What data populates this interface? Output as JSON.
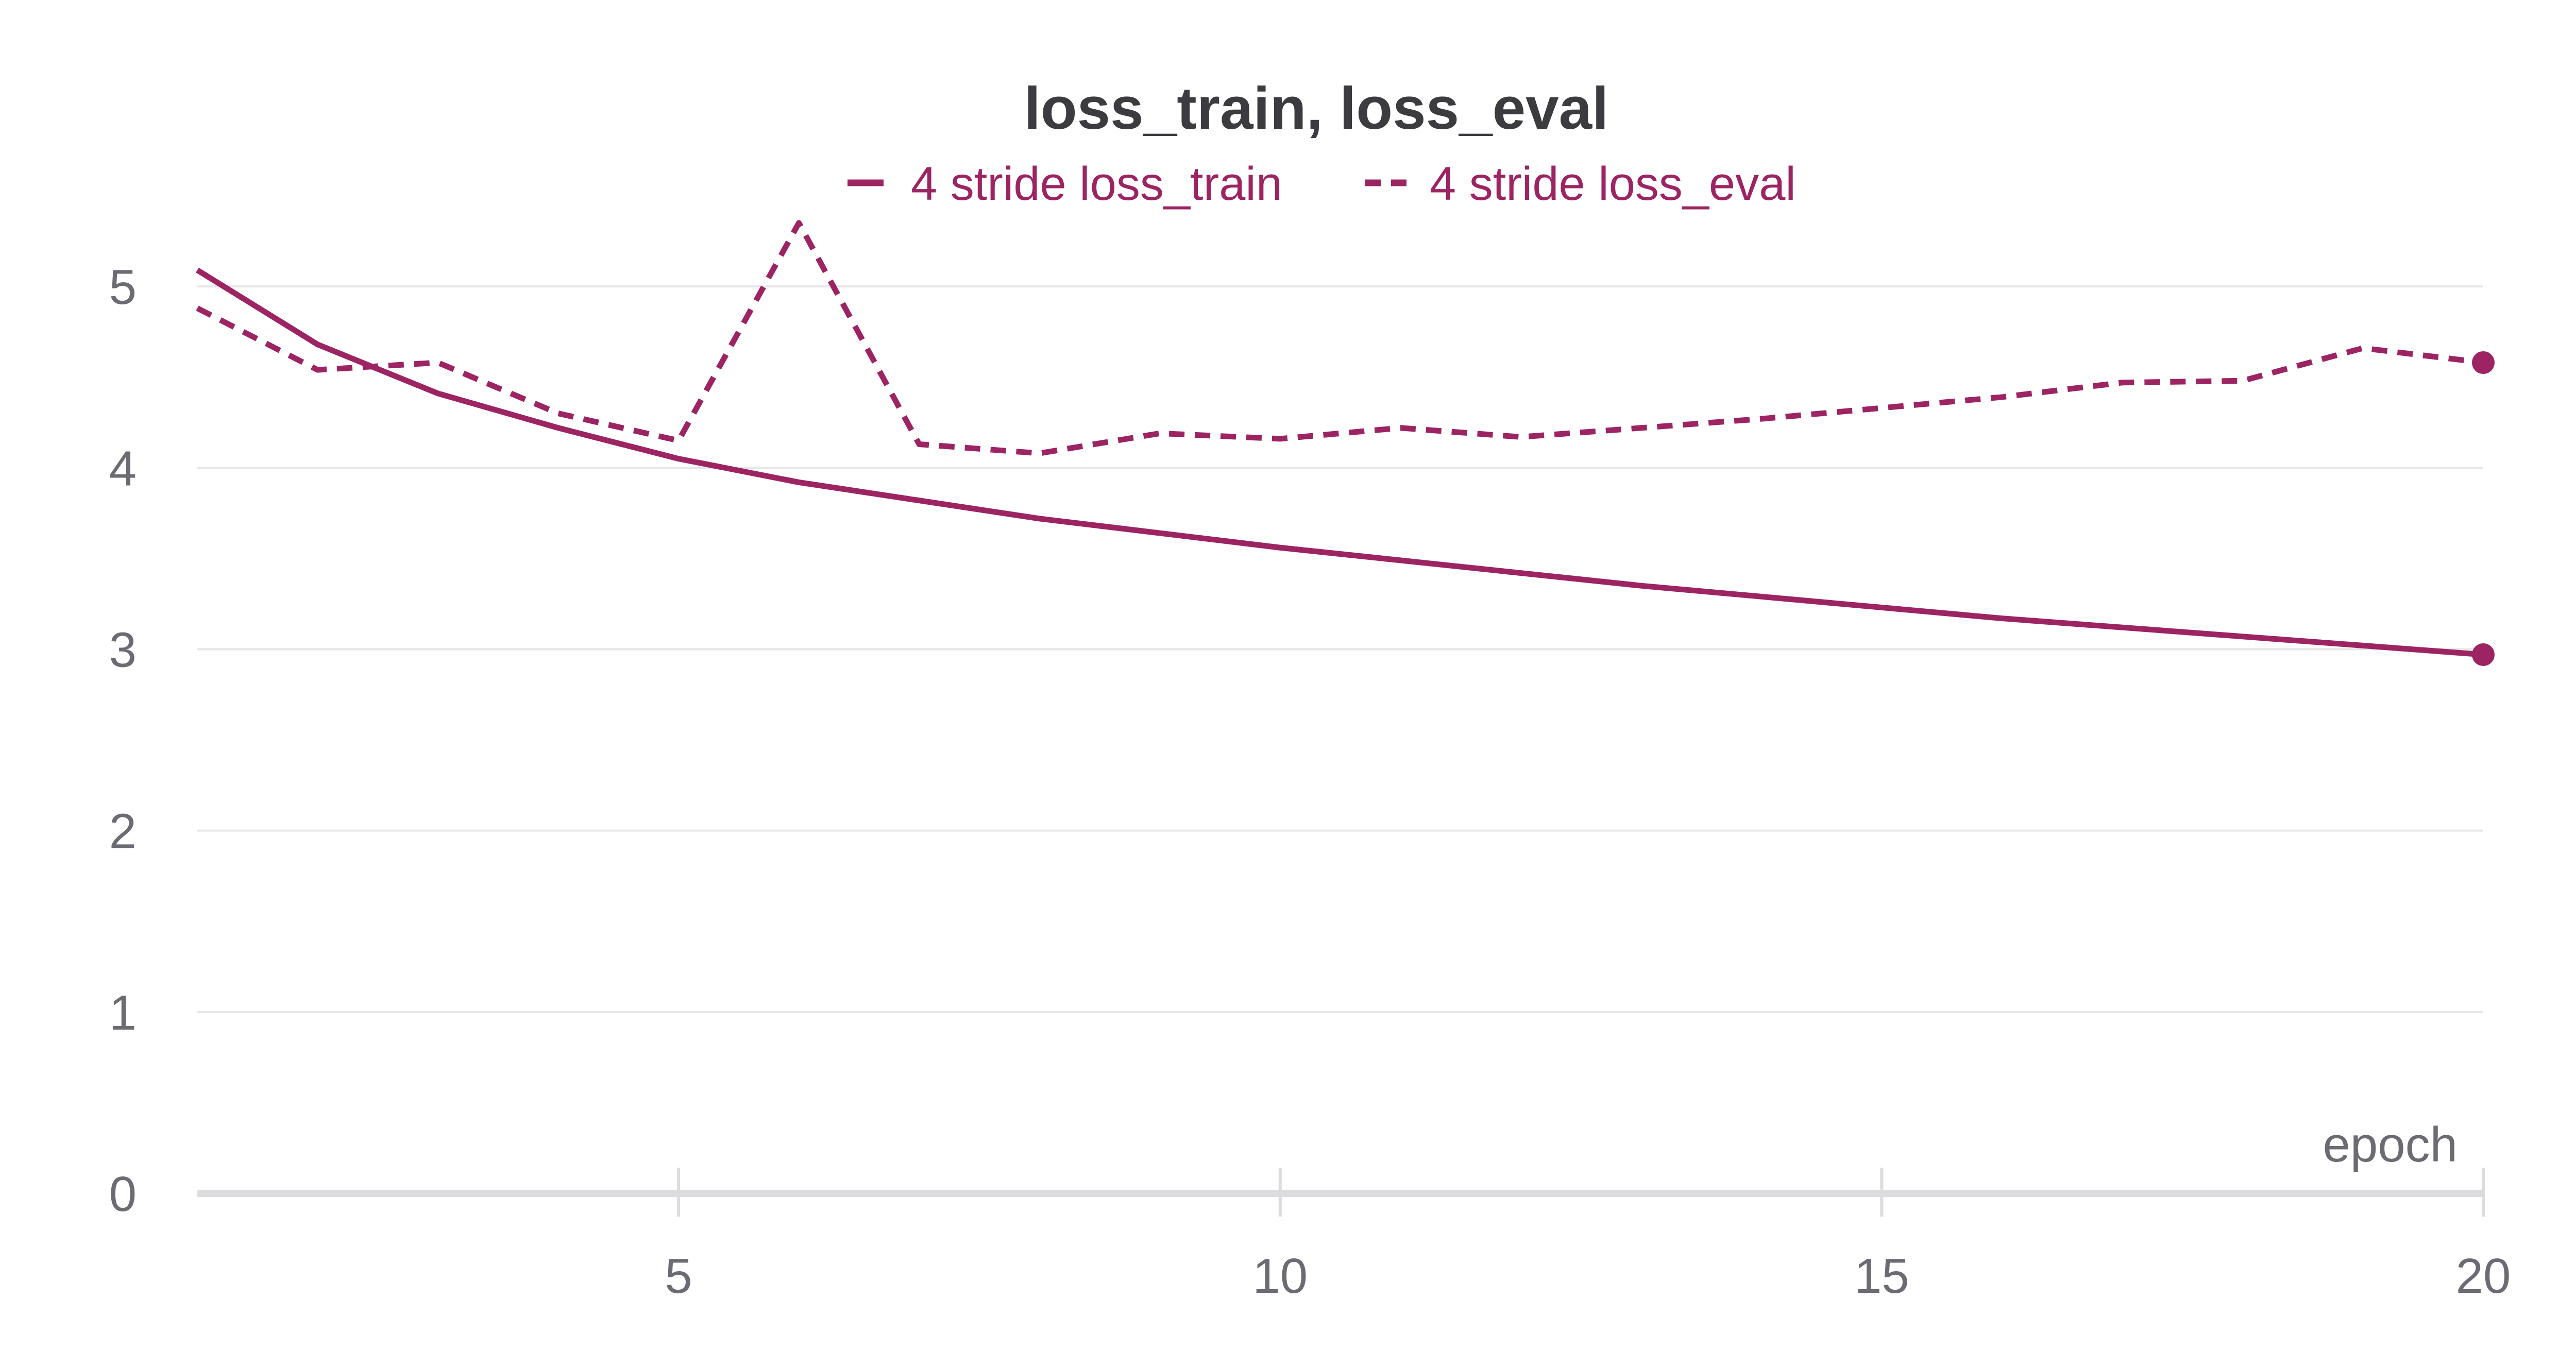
{
  "chart_data": {
    "type": "line",
    "title": "loss_train, loss_eval",
    "xlabel": "epoch",
    "ylabel": "",
    "xlim": [
      1,
      20
    ],
    "ylim": [
      0,
      5.5
    ],
    "x_ticks": [
      5,
      10,
      15,
      20
    ],
    "y_ticks": [
      0,
      1,
      2,
      3,
      4,
      5
    ],
    "x_tick_labels": [
      "5",
      "10",
      "15",
      "20"
    ],
    "y_tick_labels": [
      "0",
      "1",
      "2",
      "3",
      "4",
      "5"
    ],
    "grid": true,
    "legend_position": "top-center",
    "x": [
      1,
      2,
      3,
      4,
      5,
      6,
      7,
      8,
      9,
      10,
      11,
      12,
      13,
      14,
      15,
      16,
      17,
      18,
      19,
      20
    ],
    "series": [
      {
        "name": "4 stride loss_train",
        "style": "solid",
        "color": "#9c2462",
        "values": [
          5.09,
          4.68,
          4.41,
          4.22,
          4.05,
          3.92,
          3.82,
          3.72,
          3.64,
          3.56,
          3.49,
          3.42,
          3.35,
          3.29,
          3.23,
          3.17,
          3.12,
          3.07,
          3.02,
          2.97
        ]
      },
      {
        "name": "4 stride loss_eval",
        "style": "dashed",
        "color": "#9c2462",
        "values": [
          4.88,
          4.54,
          4.58,
          4.3,
          4.15,
          5.35,
          4.13,
          4.08,
          4.19,
          4.16,
          4.22,
          4.17,
          4.22,
          4.27,
          4.33,
          4.39,
          4.47,
          4.48,
          4.66,
          4.58
        ]
      }
    ]
  }
}
